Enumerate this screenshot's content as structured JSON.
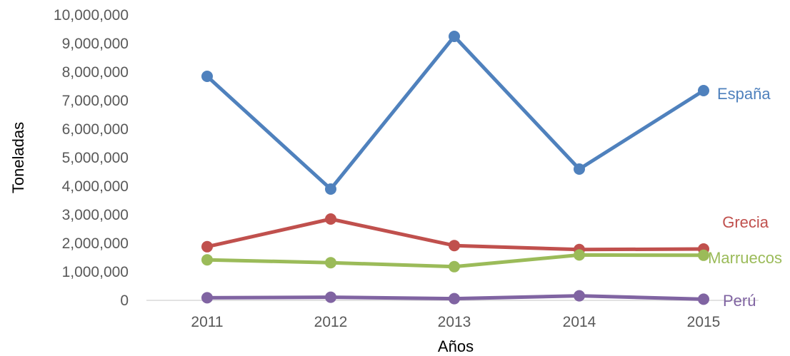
{
  "chart_data": {
    "type": "line",
    "title": "",
    "xlabel": "Años",
    "ylabel": "Toneladas",
    "categories": [
      "2011",
      "2012",
      "2013",
      "2014",
      "2015"
    ],
    "ylim": [
      0,
      10000000
    ],
    "yticks": [
      "0",
      "1,000,000",
      "2,000,000",
      "3,000,000",
      "4,000,000",
      "5,000,000",
      "6,000,000",
      "7,000,000",
      "8,000,000",
      "9,000,000",
      "10,000,000"
    ],
    "grid": false,
    "legend": "end-of-line labels",
    "series": [
      {
        "name": "España",
        "color": "#4f81bd",
        "values": [
          7850000,
          3900000,
          9250000,
          4600000,
          7350000
        ]
      },
      {
        "name": "Grecia",
        "color": "#c0504d",
        "values": [
          1880000,
          2850000,
          1920000,
          1780000,
          1800000
        ]
      },
      {
        "name": "Marruecos",
        "color": "#9bbb59",
        "values": [
          1420000,
          1320000,
          1180000,
          1590000,
          1580000
        ]
      },
      {
        "name": "Perú",
        "color": "#8064a2",
        "values": [
          90000,
          110000,
          60000,
          160000,
          40000
        ]
      }
    ]
  }
}
